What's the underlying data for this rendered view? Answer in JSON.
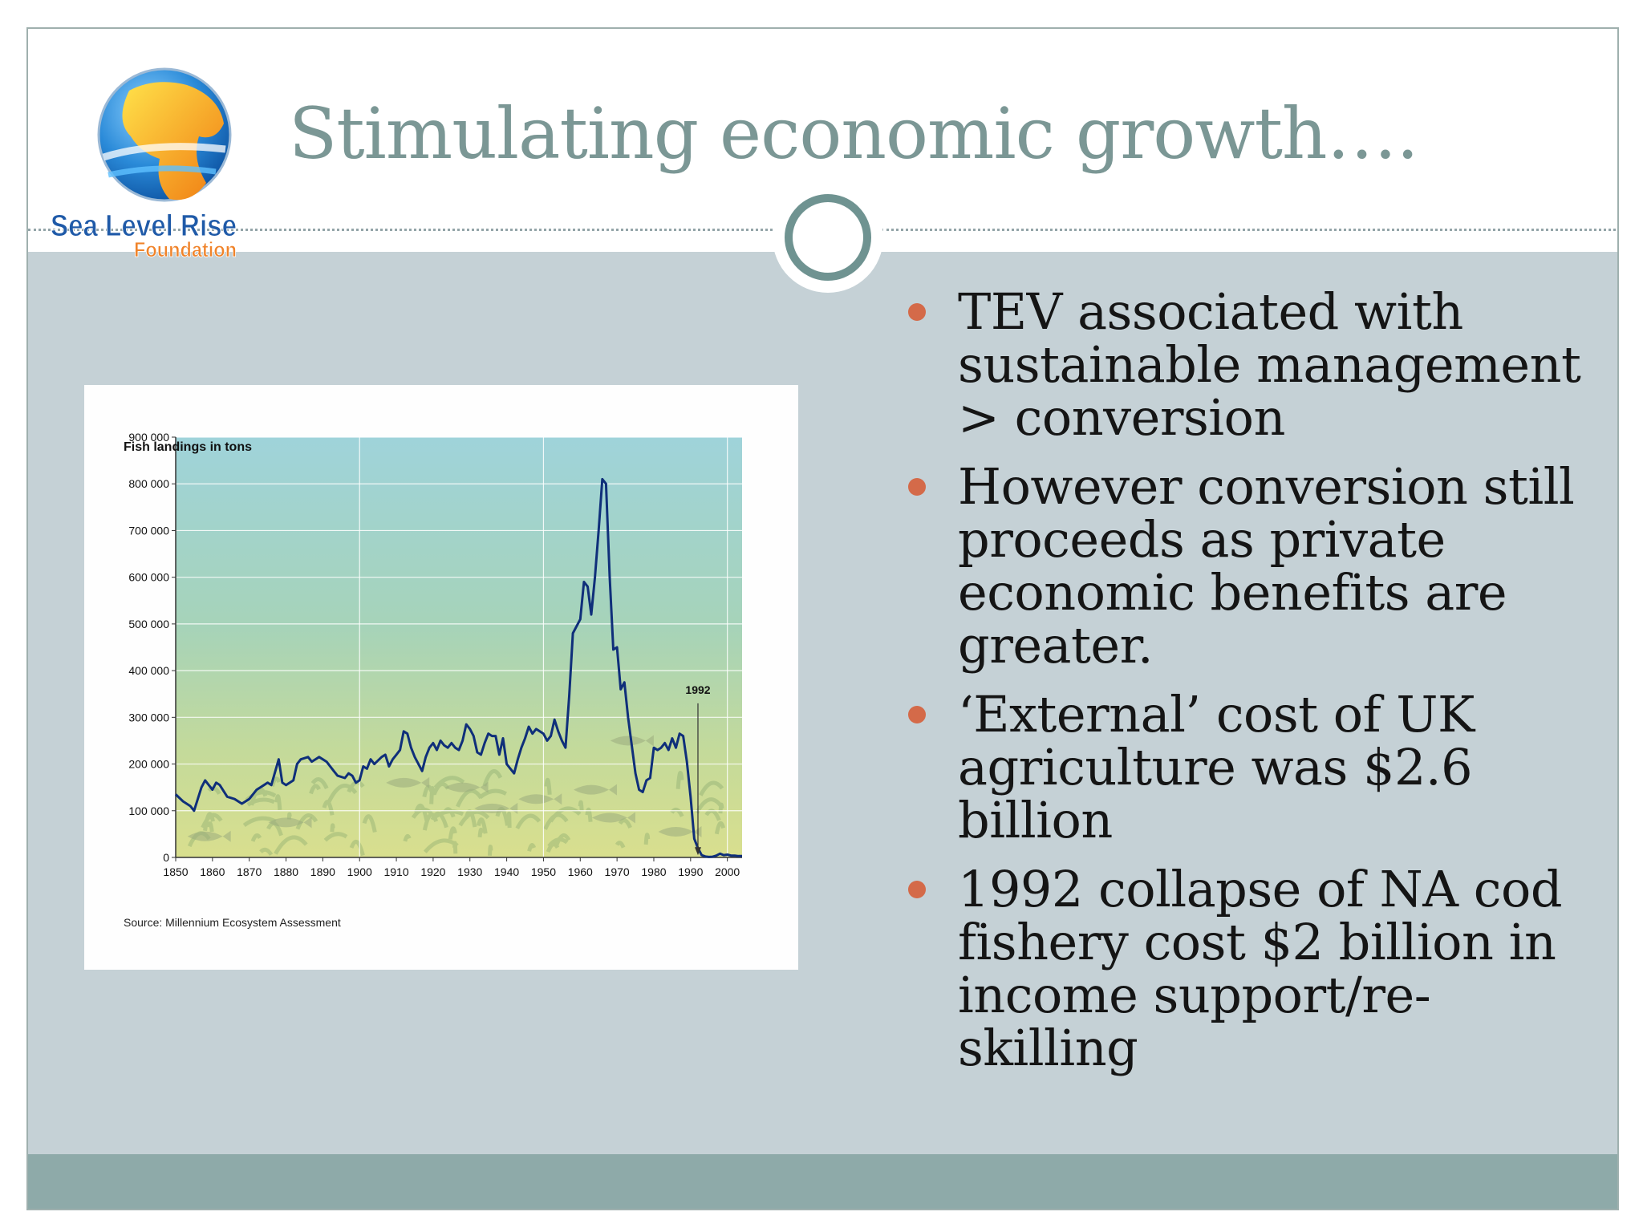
{
  "slide": {
    "title": "Stimulating economic growth….",
    "logo": {
      "line1": "Sea Level Rise",
      "line2": "Foundation",
      "icon": "globe-icon"
    },
    "colors": {
      "title": "#7b9795",
      "panel": "#c5d1d6",
      "footer": "#8eaaa9",
      "bullet": "#d46a49",
      "series": "#0f2f7a"
    }
  },
  "bullets": [
    "TEV associated with sustainable management > conversion",
    "However conversion still proceeds as private economic benefits are greater.",
    "‘External’ cost of UK agriculture was $2.6 billion",
    "1992 collapse of NA cod fishery cost $2 billion in income support/re-skilling"
  ],
  "chart_data": {
    "type": "line",
    "title": "Fish landings in tons",
    "source": "Source: Millennium Ecosystem Assessment",
    "annotation": {
      "label": "1992",
      "x": 1992
    },
    "xlim": [
      1850,
      2004
    ],
    "ylim": [
      0,
      900000
    ],
    "grid": true,
    "x_ticks": [
      1850,
      1860,
      1870,
      1880,
      1890,
      1900,
      1910,
      1920,
      1930,
      1940,
      1950,
      1960,
      1970,
      1980,
      1990,
      2000
    ],
    "y_ticks": [
      {
        "value": 0,
        "label": "0"
      },
      {
        "value": 100000,
        "label": "100 000"
      },
      {
        "value": 200000,
        "label": "200 000"
      },
      {
        "value": 300000,
        "label": "300 000"
      },
      {
        "value": 400000,
        "label": "400 000"
      },
      {
        "value": 500000,
        "label": "500 000"
      },
      {
        "value": 600000,
        "label": "600 000"
      },
      {
        "value": 700000,
        "label": "700 000"
      },
      {
        "value": 800000,
        "label": "800 000"
      },
      {
        "value": 900000,
        "label": "900 000"
      }
    ],
    "x": [
      1850,
      1852,
      1854,
      1855,
      1857,
      1858,
      1860,
      1861,
      1862,
      1864,
      1866,
      1868,
      1870,
      1872,
      1873,
      1874,
      1875,
      1876,
      1878,
      1879,
      1880,
      1882,
      1883,
      1884,
      1886,
      1887,
      1889,
      1890,
      1891,
      1893,
      1894,
      1896,
      1897,
      1898,
      1899,
      1900,
      1901,
      1902,
      1903,
      1904,
      1906,
      1907,
      1908,
      1909,
      1910,
      1911,
      1912,
      1913,
      1914,
      1915,
      1916,
      1917,
      1918,
      1919,
      1920,
      1921,
      1922,
      1923,
      1924,
      1925,
      1926,
      1927,
      1928,
      1929,
      1930,
      1931,
      1932,
      1933,
      1934,
      1935,
      1936,
      1937,
      1938,
      1939,
      1940,
      1941,
      1942,
      1943,
      1944,
      1945,
      1946,
      1947,
      1948,
      1949,
      1950,
      1951,
      1952,
      1953,
      1954,
      1955,
      1956,
      1957,
      1958,
      1959,
      1960,
      1961,
      1962,
      1963,
      1964,
      1965,
      1966,
      1967,
      1968,
      1969,
      1970,
      1971,
      1972,
      1973,
      1974,
      1975,
      1976,
      1977,
      1978,
      1979,
      1980,
      1981,
      1982,
      1983,
      1984,
      1985,
      1986,
      1987,
      1988,
      1989,
      1990,
      1991,
      1992,
      1993,
      1994,
      1995,
      1996,
      1997,
      1998,
      1999,
      2000,
      2001,
      2002,
      2003,
      2004
    ],
    "series": [
      {
        "values": [
          135000,
          120000,
          110000,
          100000,
          150000,
          165000,
          145000,
          160000,
          155000,
          130000,
          125000,
          115000,
          125000,
          145000,
          150000,
          155000,
          160000,
          155000,
          210000,
          160000,
          155000,
          165000,
          200000,
          210000,
          215000,
          205000,
          215000,
          210000,
          205000,
          185000,
          175000,
          170000,
          180000,
          175000,
          160000,
          165000,
          195000,
          190000,
          210000,
          200000,
          215000,
          220000,
          195000,
          210000,
          220000,
          230000,
          270000,
          265000,
          235000,
          215000,
          200000,
          185000,
          215000,
          235000,
          245000,
          230000,
          250000,
          240000,
          235000,
          245000,
          235000,
          230000,
          250000,
          285000,
          275000,
          260000,
          225000,
          220000,
          245000,
          265000,
          260000,
          260000,
          220000,
          255000,
          200000,
          190000,
          180000,
          210000,
          235000,
          255000,
          280000,
          265000,
          275000,
          270000,
          265000,
          250000,
          260000,
          295000,
          270000,
          250000,
          235000,
          345000,
          480000,
          495000,
          510000,
          590000,
          580000,
          520000,
          600000,
          700000,
          810000,
          800000,
          600000,
          445000,
          450000,
          360000,
          375000,
          300000,
          240000,
          180000,
          145000,
          140000,
          165000,
          170000,
          235000,
          230000,
          235000,
          245000,
          230000,
          255000,
          235000,
          265000,
          260000,
          205000,
          130000,
          40000,
          20000,
          5000,
          2000,
          1000,
          1500,
          4000,
          8000,
          5000,
          6000,
          4000,
          4000,
          3000,
          3000
        ]
      }
    ]
  }
}
